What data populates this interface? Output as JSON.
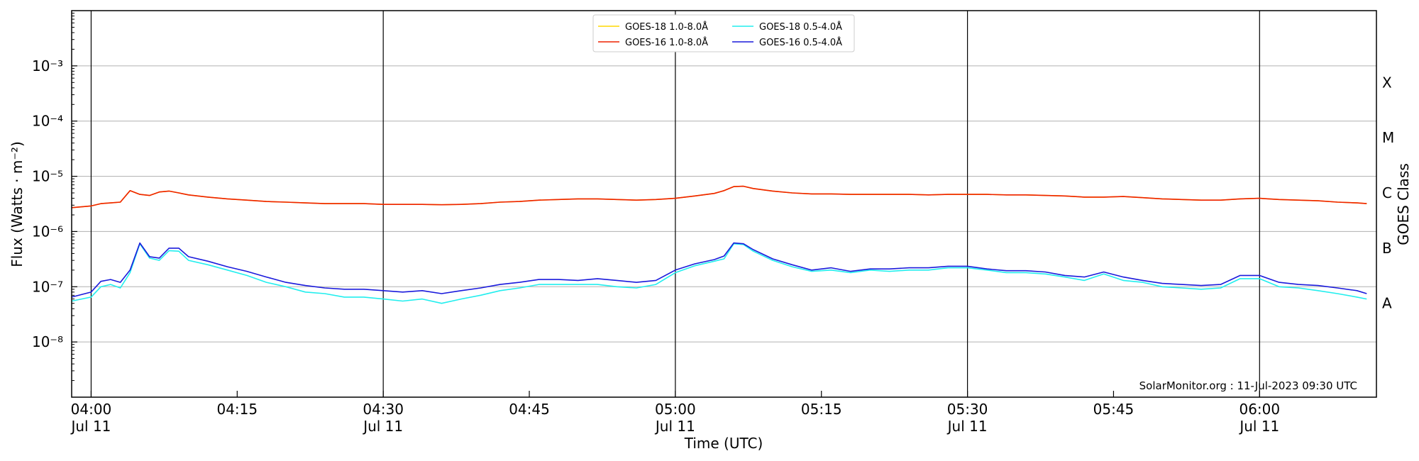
{
  "chart_data": {
    "type": "line",
    "title": "",
    "xlabel": "Time (UTC)",
    "ylabel": "Flux (Watts · m⁻²)",
    "y2label": "GOES Class",
    "yscale": "log",
    "ylim": [
      1e-09,
      0.01
    ],
    "xlim": [
      "03:58",
      "06:12"
    ],
    "grid": "horizontal at each decade",
    "legend_placement": "top-center",
    "x_ticks": [
      {
        "time": "04:00",
        "line1": "04:00",
        "line2": "Jul 11"
      },
      {
        "time": "04:15",
        "line1": "04:15",
        "line2": ""
      },
      {
        "time": "04:30",
        "line1": "04:30",
        "line2": "Jul 11"
      },
      {
        "time": "04:45",
        "line1": "04:45",
        "line2": ""
      },
      {
        "time": "05:00",
        "line1": "05:00",
        "line2": "Jul 11"
      },
      {
        "time": "05:15",
        "line1": "05:15",
        "line2": ""
      },
      {
        "time": "05:30",
        "line1": "05:30",
        "line2": "Jul 11"
      },
      {
        "time": "05:45",
        "line1": "05:45",
        "line2": ""
      },
      {
        "time": "06:00",
        "line1": "06:00",
        "line2": "Jul 11"
      }
    ],
    "vertical_lines": [
      "04:00",
      "04:30",
      "05:00",
      "05:30",
      "06:00"
    ],
    "y_ticks": [
      {
        "value": 1e-08,
        "label": "10⁻⁸"
      },
      {
        "value": 1e-07,
        "label": "10⁻⁷"
      },
      {
        "value": 1e-06,
        "label": "10⁻⁶"
      },
      {
        "value": 1e-05,
        "label": "10⁻⁵"
      },
      {
        "value": 0.0001,
        "label": "10⁻⁴"
      },
      {
        "value": 0.001,
        "label": "10⁻³"
      }
    ],
    "goes_classes": [
      {
        "label": "A",
        "flux": 5e-08
      },
      {
        "label": "B",
        "flux": 5e-07
      },
      {
        "label": "C",
        "flux": 5e-06
      },
      {
        "label": "M",
        "flux": 5e-05
      },
      {
        "label": "X",
        "flux": 0.0005
      }
    ],
    "x": [
      "03:58",
      "04:00",
      "04:01",
      "04:02",
      "04:03",
      "04:04",
      "04:05",
      "04:06",
      "04:07",
      "04:08",
      "04:09",
      "04:10",
      "04:12",
      "04:14",
      "04:16",
      "04:18",
      "04:20",
      "04:22",
      "04:24",
      "04:26",
      "04:28",
      "04:30",
      "04:32",
      "04:34",
      "04:36",
      "04:38",
      "04:40",
      "04:42",
      "04:44",
      "04:46",
      "04:48",
      "04:50",
      "04:52",
      "04:54",
      "04:56",
      "04:58",
      "05:00",
      "05:02",
      "05:04",
      "05:05",
      "05:06",
      "05:07",
      "05:08",
      "05:10",
      "05:12",
      "05:14",
      "05:16",
      "05:18",
      "05:20",
      "05:22",
      "05:24",
      "05:26",
      "05:28",
      "05:30",
      "05:32",
      "05:34",
      "05:36",
      "05:38",
      "05:40",
      "05:42",
      "05:44",
      "05:46",
      "05:48",
      "05:50",
      "05:52",
      "05:54",
      "05:56",
      "05:58",
      "06:00",
      "06:02",
      "06:04",
      "06:06",
      "06:08",
      "06:10",
      "06:11"
    ],
    "series": [
      {
        "name": "GOES-18 1.0-8.0Å",
        "color": "#ffd700",
        "values": [
          2.7e-06,
          2.9e-06,
          3.2e-06,
          3.3e-06,
          3.4e-06,
          5.5e-06,
          4.7e-06,
          4.5e-06,
          5.2e-06,
          5.4e-06,
          5e-06,
          4.6e-06,
          4.2e-06,
          3.9e-06,
          3.7e-06,
          3.5e-06,
          3.4e-06,
          3.3e-06,
          3.2e-06,
          3.2e-06,
          3.2e-06,
          3.1e-06,
          3.1e-06,
          3.1e-06,
          3.05e-06,
          3.1e-06,
          3.2e-06,
          3.4e-06,
          3.5e-06,
          3.7e-06,
          3.8e-06,
          3.9e-06,
          3.9e-06,
          3.8e-06,
          3.7e-06,
          3.8e-06,
          4e-06,
          4.4e-06,
          4.9e-06,
          5.5e-06,
          6.5e-06,
          6.6e-06,
          6e-06,
          5.4e-06,
          5e-06,
          4.8e-06,
          4.8e-06,
          4.7e-06,
          4.7e-06,
          4.7e-06,
          4.7e-06,
          4.6e-06,
          4.7e-06,
          4.7e-06,
          4.7e-06,
          4.6e-06,
          4.6e-06,
          4.5e-06,
          4.4e-06,
          4.2e-06,
          4.2e-06,
          4.3e-06,
          4.1e-06,
          3.9e-06,
          3.8e-06,
          3.7e-06,
          3.7e-06,
          3.9e-06,
          4e-06,
          3.8e-06,
          3.7e-06,
          3.6e-06,
          3.4e-06,
          3.3e-06,
          3.2e-06
        ]
      },
      {
        "name": "GOES-16 1.0-8.0Å",
        "color": "#ee2200",
        "values": [
          2.7e-06,
          2.9e-06,
          3.2e-06,
          3.3e-06,
          3.4e-06,
          5.5e-06,
          4.7e-06,
          4.5e-06,
          5.2e-06,
          5.4e-06,
          5e-06,
          4.6e-06,
          4.2e-06,
          3.9e-06,
          3.7e-06,
          3.5e-06,
          3.4e-06,
          3.3e-06,
          3.2e-06,
          3.2e-06,
          3.2e-06,
          3.1e-06,
          3.1e-06,
          3.1e-06,
          3.05e-06,
          3.1e-06,
          3.2e-06,
          3.4e-06,
          3.5e-06,
          3.7e-06,
          3.8e-06,
          3.9e-06,
          3.9e-06,
          3.8e-06,
          3.7e-06,
          3.8e-06,
          4e-06,
          4.4e-06,
          4.9e-06,
          5.5e-06,
          6.5e-06,
          6.6e-06,
          6e-06,
          5.4e-06,
          5e-06,
          4.8e-06,
          4.8e-06,
          4.7e-06,
          4.7e-06,
          4.7e-06,
          4.7e-06,
          4.6e-06,
          4.7e-06,
          4.7e-06,
          4.7e-06,
          4.6e-06,
          4.6e-06,
          4.5e-06,
          4.4e-06,
          4.2e-06,
          4.2e-06,
          4.3e-06,
          4.1e-06,
          3.9e-06,
          3.8e-06,
          3.7e-06,
          3.7e-06,
          3.9e-06,
          4e-06,
          3.8e-06,
          3.7e-06,
          3.6e-06,
          3.4e-06,
          3.3e-06,
          3.2e-06
        ]
      },
      {
        "name": "GOES-18 0.5-4.0Å",
        "color": "#22eeee",
        "values": [
          5.5e-08,
          6.5e-08,
          1e-07,
          1.1e-07,
          9.5e-08,
          1.8e-07,
          6e-07,
          3.3e-07,
          3e-07,
          4.5e-07,
          4.4e-07,
          3e-07,
          2.5e-07,
          2e-07,
          1.6e-07,
          1.2e-07,
          1e-07,
          8e-08,
          7.5e-08,
          6.5e-08,
          6.5e-08,
          6e-08,
          5.5e-08,
          6e-08,
          5e-08,
          6e-08,
          7e-08,
          8.5e-08,
          9.5e-08,
          1.1e-07,
          1.1e-07,
          1.1e-07,
          1.1e-07,
          1e-07,
          9.5e-08,
          1.1e-07,
          1.8e-07,
          2.4e-07,
          2.9e-07,
          3.2e-07,
          6e-07,
          5.8e-07,
          4.4e-07,
          3e-07,
          2.3e-07,
          1.9e-07,
          2e-07,
          1.8e-07,
          2e-07,
          1.9e-07,
          2e-07,
          2e-07,
          2.2e-07,
          2.2e-07,
          2e-07,
          1.8e-07,
          1.8e-07,
          1.7e-07,
          1.5e-07,
          1.3e-07,
          1.7e-07,
          1.3e-07,
          1.2e-07,
          1e-07,
          9.5e-08,
          9e-08,
          9.5e-08,
          1.4e-07,
          1.4e-07,
          1e-07,
          9.5e-08,
          8.5e-08,
          7.5e-08,
          6.5e-08,
          6e-08
        ]
      },
      {
        "name": "GOES-16 0.5-4.0Å",
        "color": "#1a1adc",
        "values": [
          6.5e-08,
          8e-08,
          1.25e-07,
          1.35e-07,
          1.2e-07,
          2e-07,
          6.2e-07,
          3.5e-07,
          3.3e-07,
          5e-07,
          5e-07,
          3.5e-07,
          2.9e-07,
          2.3e-07,
          1.9e-07,
          1.5e-07,
          1.2e-07,
          1.05e-07,
          9.5e-08,
          9e-08,
          9e-08,
          8.5e-08,
          8e-08,
          8.5e-08,
          7.5e-08,
          8.5e-08,
          9.5e-08,
          1.1e-07,
          1.2e-07,
          1.35e-07,
          1.35e-07,
          1.3e-07,
          1.4e-07,
          1.3e-07,
          1.2e-07,
          1.3e-07,
          2e-07,
          2.6e-07,
          3.1e-07,
          3.6e-07,
          6.2e-07,
          6e-07,
          4.7e-07,
          3.2e-07,
          2.5e-07,
          2e-07,
          2.2e-07,
          1.9e-07,
          2.1e-07,
          2.1e-07,
          2.2e-07,
          2.2e-07,
          2.35e-07,
          2.35e-07,
          2.1e-07,
          1.95e-07,
          1.95e-07,
          1.85e-07,
          1.6e-07,
          1.5e-07,
          1.85e-07,
          1.5e-07,
          1.3e-07,
          1.15e-07,
          1.1e-07,
          1.05e-07,
          1.1e-07,
          1.6e-07,
          1.6e-07,
          1.2e-07,
          1.1e-07,
          1.05e-07,
          9.5e-08,
          8.5e-08,
          7.5e-08
        ]
      }
    ],
    "legend": {
      "columns": [
        [
          "GOES-18 1.0-8.0Å",
          "GOES-16 1.0-8.0Å"
        ],
        [
          "GOES-18 0.5-4.0Å",
          "GOES-16 0.5-4.0Å"
        ]
      ]
    },
    "annotation": "SolarMonitor.org : 11-Jul-2023 09:30 UTC"
  }
}
